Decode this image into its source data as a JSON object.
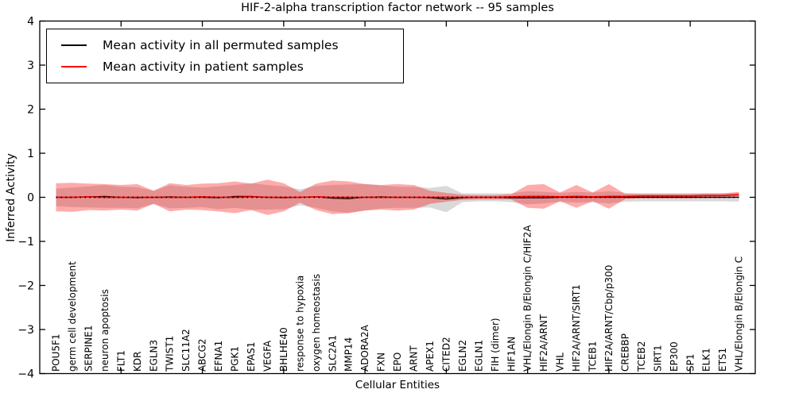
{
  "chart_data": {
    "type": "line",
    "title": "HIF-2-alpha transcription factor network -- 95 samples",
    "xlabel": "Cellular Entities",
    "ylabel": "Inferred Activity",
    "ylim": [
      -4,
      4
    ],
    "ytick_labels": [
      "4",
      "3",
      "2",
      "1",
      "0",
      "−1",
      "−2",
      "−3",
      "−4"
    ],
    "ytick_values": [
      4,
      3,
      2,
      1,
      0,
      -1,
      -2,
      -3,
      -4
    ],
    "xlim": [
      0,
      44
    ],
    "xtick_values": [
      5,
      10,
      15,
      20,
      25,
      30,
      35,
      40
    ],
    "grid": false,
    "legend": {
      "position": "upper left",
      "entries": [
        {
          "label": "Mean activity in all permuted samples",
          "color": "#000000"
        },
        {
          "label": "Mean activity in patient samples",
          "color": "#ff0000"
        }
      ]
    },
    "categories": [
      "POU5F1",
      "germ cell development",
      "SERPINE1",
      "neuron apoptosis",
      "FLT1",
      "KDR",
      "EGLN3",
      "TWIST1",
      "SLC11A2",
      "ABCG2",
      "EFNA1",
      "PGK1",
      "EPAS1",
      "VEGFA",
      "BHLHE40",
      "response to hypoxia",
      "oxygen homeostasis",
      "SLC2A1",
      "MMP14",
      "ADORA2A",
      "FXN",
      "EPO",
      "ARNT",
      "APEX1",
      "CITED2",
      "EGLN2",
      "EGLN1",
      "FIH (dimer)",
      "HIF1AN",
      "VHL/Elongin B/Elongin C/HIF2A",
      "HIF2A/ARNT",
      "VHL",
      "HIF2A/ARNT/SIRT1",
      "TCEB1",
      "HIF2A/ARNT/Cbp/p300",
      "CREBBP",
      "TCEB2",
      "SIRT1",
      "EP300",
      "SP1",
      "ELK1",
      "ETS1",
      "VHL/Elongin B/Elongin C"
    ],
    "series": [
      {
        "name": "Mean activity in all permuted samples",
        "color": "#000000",
        "values": [
          0,
          0,
          0.01,
          0.02,
          0,
          -0.01,
          0,
          0.01,
          0,
          0,
          -0.01,
          0.02,
          0.02,
          0,
          -0.01,
          0,
          0.01,
          -0.02,
          -0.03,
          0,
          0.01,
          0,
          0,
          -0.01,
          -0.04,
          -0.01,
          0,
          0,
          -0.01,
          -0.01,
          -0.01,
          0,
          0,
          0,
          0,
          0,
          0,
          0,
          0,
          0,
          0,
          0,
          0
        ]
      },
      {
        "name": "Mean activity in patient samples",
        "color": "#ff0000",
        "values": [
          0,
          0,
          0.01,
          0,
          0,
          0,
          0,
          0,
          0,
          0.01,
          0,
          0,
          0.01,
          0,
          0,
          0,
          0.01,
          0,
          0,
          0,
          0,
          0,
          0,
          0,
          0,
          0,
          0,
          0,
          0.01,
          0.02,
          0.02,
          0.01,
          0.02,
          0.01,
          0.02,
          0.02,
          0.03,
          0.03,
          0.03,
          0.03,
          0.04,
          0.04,
          0.06
        ]
      }
    ],
    "bands": [
      {
        "name": "permuted samples spread",
        "series": "Mean activity in all permuted samples",
        "color": "#000000",
        "opacity": 0.15,
        "half_widths": [
          0.2,
          0.22,
          0.24,
          0.26,
          0.24,
          0.24,
          0.15,
          0.26,
          0.24,
          0.22,
          0.26,
          0.26,
          0.3,
          0.28,
          0.26,
          0.18,
          0.25,
          0.3,
          0.32,
          0.3,
          0.26,
          0.24,
          0.24,
          0.22,
          0.3,
          0.1,
          0.09,
          0.09,
          0.1,
          0.15,
          0.13,
          0.1,
          0.12,
          0.11,
          0.14,
          0.1,
          0.09,
          0.09,
          0.09,
          0.09,
          0.09,
          0.09,
          0.1
        ]
      },
      {
        "name": "patient samples spread",
        "series": "Mean activity in patient samples",
        "color": "#ff0000",
        "opacity": 0.33,
        "half_widths": [
          0.32,
          0.33,
          0.3,
          0.3,
          0.28,
          0.3,
          0.15,
          0.32,
          0.28,
          0.3,
          0.32,
          0.36,
          0.3,
          0.4,
          0.32,
          0.12,
          0.3,
          0.38,
          0.36,
          0.3,
          0.28,
          0.3,
          0.28,
          0.15,
          0.1,
          0.06,
          0.05,
          0.05,
          0.06,
          0.26,
          0.28,
          0.1,
          0.26,
          0.1,
          0.28,
          0.06,
          0.05,
          0.05,
          0.05,
          0.05,
          0.05,
          0.05,
          0.06
        ]
      }
    ],
    "zero_line": {
      "y": 0,
      "style": "dotted",
      "color": "#000000"
    }
  }
}
